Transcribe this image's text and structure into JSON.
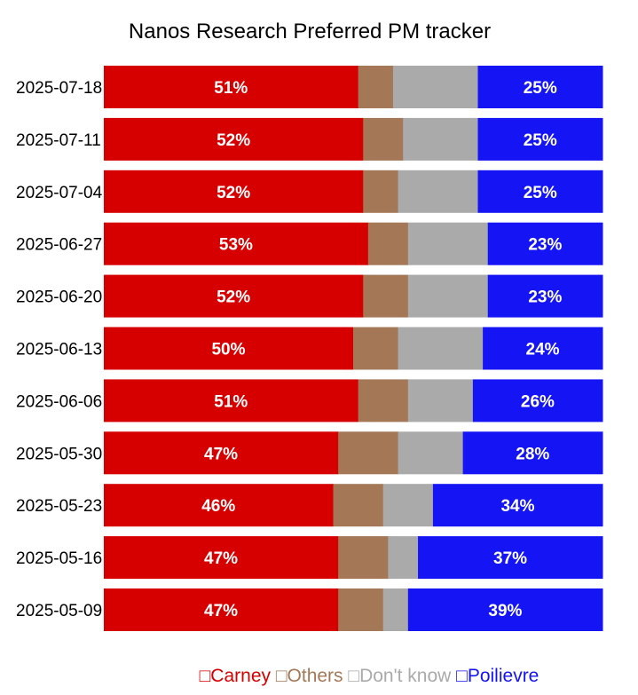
{
  "chart_data": {
    "type": "bar",
    "orientation": "horizontal",
    "stacked": true,
    "title": "Nanos Research Preferred PM tracker",
    "xlabel": "",
    "ylabel": "",
    "xlim": [
      0,
      100
    ],
    "grid": false,
    "legend": "bottom",
    "categories": [
      "2025-07-18",
      "2025-07-11",
      "2025-07-04",
      "2025-06-27",
      "2025-06-20",
      "2025-06-13",
      "2025-06-06",
      "2025-05-30",
      "2025-05-23",
      "2025-05-16",
      "2025-05-09"
    ],
    "series": [
      {
        "name": "Carney",
        "color": "#d60000",
        "labeled": true,
        "values": [
          51,
          52,
          52,
          53,
          52,
          50,
          51,
          47,
          46,
          47,
          47
        ]
      },
      {
        "name": "Others",
        "color": "#a47857",
        "labeled": false,
        "values": [
          7,
          8,
          7,
          8,
          9,
          9,
          10,
          12,
          10,
          10,
          9
        ]
      },
      {
        "name": "Don't know",
        "color": "#aaaaaa",
        "labeled": false,
        "values": [
          17,
          15,
          16,
          16,
          16,
          17,
          13,
          13,
          10,
          6,
          5
        ]
      },
      {
        "name": "Poilievre",
        "color": "#1414f4",
        "labeled": true,
        "values": [
          25,
          25,
          25,
          23,
          23,
          24,
          26,
          28,
          34,
          37,
          39
        ]
      }
    ]
  },
  "legend_marker": "□"
}
